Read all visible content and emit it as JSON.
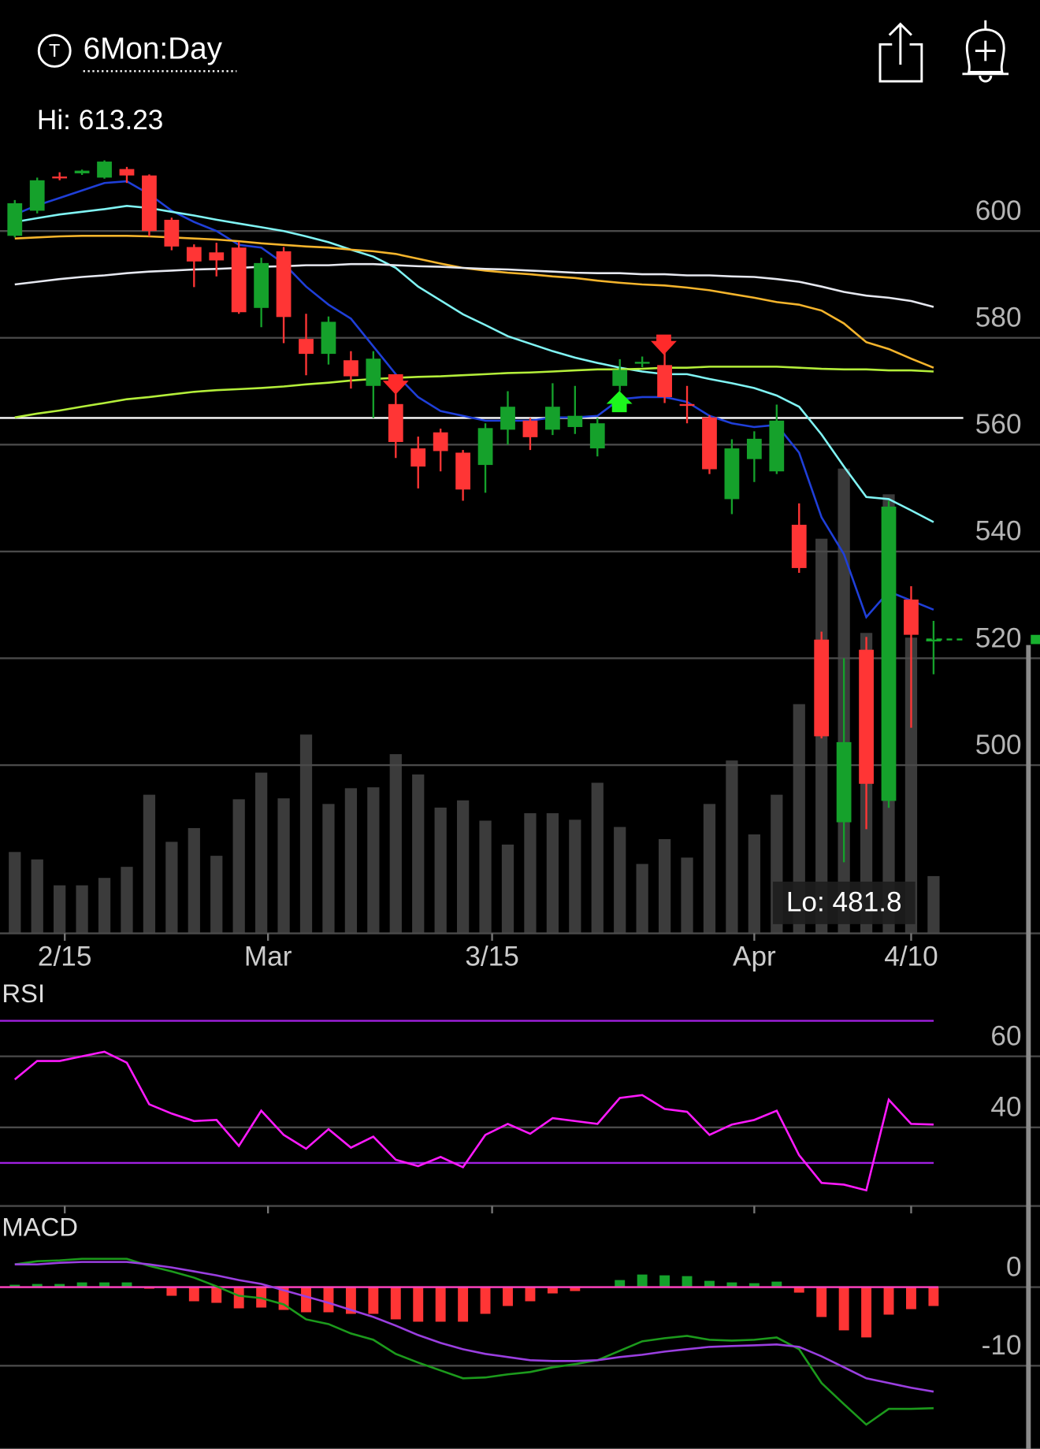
{
  "header": {
    "icon": "T",
    "period": "6Mon:Day"
  },
  "chart_data": [
    {
      "type": "candlestick",
      "hi_label": "Hi: 613.23",
      "lo_label": "Lo: 481.8",
      "xlim": [
        -0.66,
        45.75
      ],
      "xticks": [
        {
          "value": 2.23,
          "label": "2/15"
        },
        {
          "value": 11.3,
          "label": "Mar"
        },
        {
          "value": 21.3,
          "label": "3/15"
        },
        {
          "value": 33,
          "label": "Apr"
        },
        {
          "value": 40,
          "label": "4/10"
        }
      ],
      "ylim": [
        468.5,
        617.3
      ],
      "yticks": [
        500,
        520,
        540,
        560,
        580,
        600
      ],
      "grid": true,
      "up_color": "#15a12b",
      "down_color": "#ff3535",
      "open": [
        599.1,
        603.8,
        610.2,
        610.8,
        610,
        611.6,
        610.4,
        602.1,
        597,
        596,
        596.9,
        585.6,
        596.2,
        579.8,
        577,
        575.8,
        571,
        567.6,
        559.3,
        562.3,
        558.5,
        556.2,
        562.8,
        564.5,
        562.8,
        563.3,
        559.3,
        571,
        575.3,
        574.9,
        567.6,
        565.1,
        549.8,
        557.3,
        555,
        545,
        523.5,
        489.3,
        521.6,
        493.3,
        531,
        523.3
      ],
      "high": [
        605.8,
        610,
        611,
        611.5,
        613.23,
        612,
        610.6,
        602.5,
        597.5,
        597.8,
        598,
        595,
        597,
        584.5,
        584,
        577.5,
        577.5,
        570,
        561.5,
        563,
        559,
        564,
        570,
        565,
        571.5,
        571,
        565,
        576,
        576.5,
        577.5,
        571,
        565.5,
        561,
        562.5,
        567.5,
        549,
        525,
        520,
        524,
        549.5,
        533.5,
        527
      ],
      "low": [
        598.8,
        603.3,
        609.5,
        610.5,
        609.8,
        609,
        599,
        596.4,
        589.5,
        591.5,
        584.5,
        582,
        579,
        573,
        575,
        570.5,
        565,
        557.5,
        551.8,
        555,
        549.5,
        551,
        560,
        559,
        561.8,
        562,
        557.8,
        570,
        574.5,
        567.8,
        564,
        554.5,
        547,
        553,
        554.5,
        536,
        505,
        481.8,
        488,
        492,
        507,
        517
      ],
      "close": [
        605.2,
        609.5,
        610,
        611.3,
        613,
        610.4,
        600,
        597.1,
        594.3,
        594.5,
        584.8,
        594,
        583.9,
        577,
        583,
        572.8,
        576.1,
        560.5,
        555.9,
        558.8,
        551.6,
        563.1,
        567.1,
        561.4,
        567.1,
        565.4,
        564,
        574,
        575.5,
        568.9,
        567.5,
        555.4,
        559.3,
        561.1,
        564.5,
        536.9,
        505.4,
        504.3,
        496.5,
        548.4,
        524.4,
        523.5
      ],
      "volume": [
        44.9,
        40.8,
        26.5,
        26.5,
        30.6,
        36.7,
        76.5,
        50.5,
        58.1,
        42.8,
        74,
        88.7,
        74.5,
        109.7,
        71.4,
        80.1,
        80.6,
        98.9,
        87.7,
        69.4,
        73.4,
        62.2,
        49,
        66.3,
        66.3,
        62.7,
        83.1,
        58.7,
        38.3,
        52,
        41.8,
        71.4,
        95.4,
        54.6,
        76.5,
        126.5,
        217.8,
        256.5,
        165.8,
        242.3,
        163.2,
        31.6
      ],
      "volume_lim": [
        0,
        438.6
      ],
      "volume_color": "#3b3b3b",
      "hline": 565,
      "hline_color": "#ffffff",
      "series": [
        {
          "color": "#1f3fd8",
          "values": [
            603.1,
            604.8,
            606.2,
            607.6,
            609,
            609.3,
            606.9,
            603.8,
            601.7,
            600,
            597.4,
            596.9,
            593.9,
            589.6,
            586.2,
            583.6,
            578.4,
            573.2,
            568.9,
            566.3,
            565.4,
            564.5,
            564.5,
            564.5,
            565.1,
            565.1,
            565.4,
            568.5,
            568.9,
            568.9,
            568,
            565.4,
            564,
            563.3,
            563.7,
            558.5,
            546.4,
            539.5,
            527.7,
            532.5,
            530.8,
            529.1
          ]
        },
        {
          "color": "#80f4f4",
          "values": [
            601.7,
            602.4,
            603.1,
            603.6,
            604.1,
            604.7,
            604.3,
            603.6,
            602.9,
            602.1,
            601.4,
            600.7,
            600,
            599,
            597.9,
            596.5,
            595.2,
            593.1,
            589.6,
            587,
            584.4,
            582.4,
            580.3,
            578.9,
            577.5,
            576.3,
            575.3,
            574.4,
            573.7,
            573.2,
            573.2,
            572.3,
            571.5,
            570.6,
            569.2,
            567.1,
            561.9,
            555.9,
            550.2,
            549.8,
            547.7,
            545.5
          ]
        },
        {
          "color": "#f4b42c",
          "values": [
            598.6,
            598.8,
            599,
            599.1,
            599.1,
            599.1,
            599,
            598.8,
            598.6,
            598.4,
            598.1,
            597.7,
            597.4,
            597.1,
            596.9,
            596.5,
            596.2,
            595.7,
            594.8,
            593.9,
            593.1,
            592.6,
            592.2,
            591.9,
            591.5,
            591.2,
            590.7,
            590.3,
            590,
            589.8,
            589.4,
            588.9,
            588.2,
            587.5,
            586.7,
            586.2,
            585.1,
            582.7,
            579.2,
            577.9,
            576.1,
            574.4
          ]
        },
        {
          "color": "#e6e8f0",
          "values": [
            590,
            590.5,
            591,
            591.4,
            591.7,
            592.1,
            592.4,
            592.6,
            592.8,
            592.9,
            593.1,
            593.3,
            593.4,
            593.6,
            593.6,
            593.8,
            593.8,
            593.6,
            593.4,
            593.3,
            593.1,
            592.9,
            592.8,
            592.6,
            592.4,
            592.2,
            592.1,
            592.1,
            591.9,
            591.9,
            591.7,
            591.7,
            591.5,
            591.4,
            591,
            590.5,
            589.6,
            588.6,
            587.9,
            587.5,
            586.9,
            585.8
          ]
        },
        {
          "color": "#b4ee3a",
          "values": [
            565.1,
            565.8,
            566.4,
            567.1,
            567.8,
            568.5,
            568.9,
            569.4,
            569.9,
            570.2,
            570.4,
            570.6,
            570.9,
            571.3,
            571.6,
            572,
            572.3,
            572.5,
            572.7,
            572.8,
            573,
            573.2,
            573.4,
            573.5,
            573.7,
            573.9,
            574.1,
            574.1,
            574.2,
            574.4,
            574.4,
            574.6,
            574.6,
            574.6,
            574.6,
            574.4,
            574.2,
            574.1,
            574.1,
            573.9,
            573.9,
            573.7
          ]
        }
      ]
    },
    {
      "type": "line",
      "title": "RSI",
      "xlim": [
        -0.66,
        45.75
      ],
      "ylim": [
        17.9,
        80.3
      ],
      "yticks": [
        40,
        60
      ],
      "grid": true,
      "levels": [
        70,
        30
      ],
      "level_color": "#a020e0",
      "series": [
        {
          "color": "#ff1aff",
          "values": [
            53.5,
            58.7,
            58.7,
            60,
            61.3,
            58.2,
            46.5,
            43.9,
            41.8,
            42.1,
            34.8,
            44.7,
            37.9,
            34,
            39.5,
            34.3,
            37.4,
            30.9,
            29.1,
            31.7,
            28.8,
            37.9,
            41,
            38.2,
            42.6,
            41.8,
            41,
            48.3,
            49.1,
            45.2,
            44.4,
            37.9,
            40.8,
            42.1,
            44.7,
            32.2,
            24.4,
            23.9,
            22.3,
            47.8,
            41,
            40.8
          ]
        }
      ]
    },
    {
      "type": "macd",
      "title": "MACD",
      "xlim": [
        -0.66,
        45.75
      ],
      "ylim": [
        -20.6,
        8.8
      ],
      "yticks": [
        -10,
        0
      ],
      "grid": true,
      "zero_color": "#ff3fc0",
      "histogram": {
        "up_color": "#15a12b",
        "down_color": "#ff3535",
        "values": [
          0.3,
          0.4,
          0.4,
          0.6,
          0.6,
          0.6,
          -0.2,
          -1.1,
          -1.8,
          -2,
          -2.7,
          -2.6,
          -2.9,
          -3.2,
          -3.2,
          -3.4,
          -3.4,
          -4.1,
          -4.4,
          -4.4,
          -4.4,
          -3.4,
          -2.4,
          -1.8,
          -0.8,
          -0.5,
          -0.1,
          0.9,
          1.6,
          1.5,
          1.4,
          0.8,
          0.6,
          0.5,
          0.7,
          -0.7,
          -3.8,
          -5.5,
          -6.4,
          -3.5,
          -2.8,
          -2.4
        ]
      },
      "series": [
        {
          "color": "#1c9a1c",
          "values": [
            2.9,
            3.3,
            3.4,
            3.6,
            3.6,
            3.6,
            2.7,
            2,
            1.2,
            0.1,
            -1.1,
            -1.4,
            -2.2,
            -4.1,
            -4.7,
            -5.9,
            -6.7,
            -8.5,
            -9.6,
            -10.6,
            -11.6,
            -11.5,
            -11.1,
            -10.8,
            -10.2,
            -9.8,
            -9.3,
            -8.1,
            -6.9,
            -6.5,
            -6.2,
            -6.7,
            -6.8,
            -6.7,
            -6.4,
            -7.9,
            -12.2,
            -14.9,
            -17.5,
            -15.5,
            -15.5,
            -15.4
          ]
        },
        {
          "color": "#9a3fe0",
          "values": [
            2.9,
            2.9,
            3.1,
            3.2,
            3.2,
            3.2,
            2.9,
            2.5,
            2,
            1.5,
            0.9,
            0.4,
            -0.4,
            -1.2,
            -2,
            -2.9,
            -3.8,
            -4.9,
            -6.1,
            -7.1,
            -7.9,
            -8.5,
            -8.9,
            -9.3,
            -9.4,
            -9.4,
            -9.3,
            -8.9,
            -8.6,
            -8.2,
            -7.9,
            -7.6,
            -7.5,
            -7.4,
            -7.3,
            -7.6,
            -8.8,
            -10.2,
            -11.6,
            -12.2,
            -12.8,
            -13.3
          ]
        }
      ]
    }
  ]
}
